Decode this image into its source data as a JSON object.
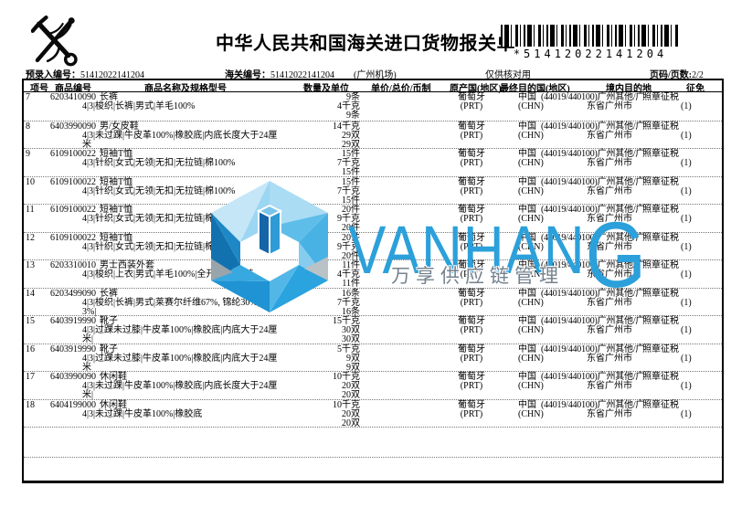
{
  "header": {
    "title": "中华人民共和国海关进口货物报关单",
    "barcode_text": "*51412022141204"
  },
  "meta": {
    "pre_entry_label": "预录入编号：",
    "pre_entry_value": "51412022141204",
    "customs_no_label": "海关编号：",
    "customs_no_value": "51412022141204",
    "port": "(广州机场)",
    "check_note": "仅供核对用",
    "page_label": "页码/页数:",
    "page_value": "2/2"
  },
  "watermark": {
    "brand_latin_head": "VANHAN",
    "brand_latin_tail": "G",
    "brand_cn": "万享供应链管理",
    "brand_color": "#2ca0da",
    "cn_color": "#74828e"
  },
  "table": {
    "headers": [
      "项号",
      "商品编号",
      "商品名称及规格型号",
      "数量及单位",
      "单价/总价/币制",
      "原产国(地区)",
      "最终目的国(地区)",
      "境内目的地",
      "征免"
    ],
    "empty_rows": 2,
    "rows": [
      {
        "no": "7",
        "code": "6203410090",
        "name": "长裤",
        "spec_lines": [
          "4|3|梭织|长裤|男式|羊毛100%"
        ],
        "qty": [
          "9条",
          "4千克",
          "9条"
        ],
        "origin": [
          "葡萄牙",
          "(PRT)"
        ],
        "dest": [
          "中国",
          "(CHN)"
        ],
        "domestic": [
          "(44019/440100)广州其他/广",
          "东省广州市"
        ],
        "levy": [
          "照章征税",
          "(1)"
        ]
      },
      {
        "no": "8",
        "code": "6403990090",
        "name": "男/女皮鞋",
        "spec_lines": [
          "4|3|未过踝|牛皮革100%|橡胶底|内底长度大于24厘",
          "米"
        ],
        "qty": [
          "14千克",
          "29双",
          "29双"
        ],
        "origin": [
          "葡萄牙",
          "(PRT)"
        ],
        "dest": [
          "中国",
          "(CHN)"
        ],
        "domestic": [
          "(44019/440100)广州其他/广",
          "东省广州市"
        ],
        "levy": [
          "照章征税",
          "(1)"
        ]
      },
      {
        "no": "9",
        "code": "6109100022",
        "name": "短袖T恤",
        "spec_lines": [
          "4|3|针织|女式|无领|无扣|无拉链|棉100%"
        ],
        "qty": [
          "15件",
          "7千克",
          "15件"
        ],
        "origin": [
          "葡萄牙",
          "(PRT)"
        ],
        "dest": [
          "中国",
          "(CHN)"
        ],
        "domestic": [
          "(44019/440100)广州其他/广",
          "东省广州市"
        ],
        "levy": [
          "照章征税",
          "(1)"
        ]
      },
      {
        "no": "10",
        "code": "6109100022",
        "name": "短袖T恤",
        "spec_lines": [
          "4|3|针织|女式|无领|无扣|无拉链|棉100%"
        ],
        "qty": [
          "15件",
          "7千克",
          "15件"
        ],
        "origin": [
          "葡萄牙",
          "(PRT)"
        ],
        "dest": [
          "中国",
          "(CHN)"
        ],
        "domestic": [
          "(44019/440100)广州其他/广",
          "东省广州市"
        ],
        "levy": [
          "照章征税",
          "(1)"
        ]
      },
      {
        "no": "11",
        "code": "6109100022",
        "name": "短袖T恤",
        "spec_lines": [
          "4|3|针织|女式|无领|无扣|无拉链|棉100%"
        ],
        "qty": [
          "20件",
          "9千克",
          "20件"
        ],
        "origin": [
          "葡萄牙",
          "(PRT)"
        ],
        "dest": [
          "中国",
          "(CHN)"
        ],
        "domestic": [
          "(44019/440100)广州其他/广",
          "东省广州市"
        ],
        "levy": [
          "照章征税",
          "(1)"
        ]
      },
      {
        "no": "12",
        "code": "6109100022",
        "name": "短袖T恤",
        "spec_lines": [
          "4|3|针织|女式|无领|无扣|无拉链|棉100%"
        ],
        "qty": [
          "20件",
          "9千克",
          "20件"
        ],
        "origin": [
          "葡萄牙",
          "(PRT)"
        ],
        "dest": [
          "中国",
          "(CHN)"
        ],
        "domestic": [
          "(44019/440100)广州其他/广",
          "东省广州市"
        ],
        "levy": [
          "照章征税",
          "(1)"
        ]
      },
      {
        "no": "13",
        "code": "6203310010",
        "name": "男士西装外套",
        "spec_lines": [
          "4|3|梭织|上衣|男式|羊毛100%|全开襟|无拉链"
        ],
        "qty": [
          "11件",
          "4千克",
          "11件"
        ],
        "origin": [
          "葡萄牙",
          "(PRT)"
        ],
        "dest": [
          "中国",
          "(CHN)"
        ],
        "domestic": [
          "(44019/440100)广州其他/广",
          "东省广州市"
        ],
        "levy": [
          "照章征税",
          "(1)"
        ]
      },
      {
        "no": "14",
        "code": "6203499090",
        "name": "长裤",
        "spec_lines": [
          "4|3|梭织|长裤|男式|莱赛尔纤维67%, 锦纶30%, 氨纶",
          "3%|"
        ],
        "qty": [
          "16条",
          "7千克",
          "16条"
        ],
        "origin": [
          "葡萄牙",
          "(PRT)"
        ],
        "dest": [
          "中国",
          "(CHN)"
        ],
        "domestic": [
          "(44019/440100)广州其他/广",
          "东省广州市"
        ],
        "levy": [
          "照章征税",
          "(1)"
        ]
      },
      {
        "no": "15",
        "code": "6403919990",
        "name": "靴子",
        "spec_lines": [
          "4|3|过踝未过膝|牛皮革100%|橡胶底|内底大于24厘",
          "米|"
        ],
        "qty": [
          "15千克",
          "30双",
          "30双"
        ],
        "origin": [
          "葡萄牙",
          "(PRT)"
        ],
        "dest": [
          "中国",
          "(CHN)"
        ],
        "domestic": [
          "(44019/440100)广州其他/广",
          "东省广州市"
        ],
        "levy": [
          "照章征税",
          "(1)"
        ]
      },
      {
        "no": "16",
        "code": "6403919990",
        "name": "靴子",
        "spec_lines": [
          "4|3|过踝未过膝|牛皮革100%|橡胶底|内底大于24厘",
          "米"
        ],
        "qty": [
          "5千克",
          "9双",
          "9双"
        ],
        "origin": [
          "葡萄牙",
          "(PRT)"
        ],
        "dest": [
          "中国",
          "(CHN)"
        ],
        "domestic": [
          "(44019/440100)广州其他/广",
          "东省广州市"
        ],
        "levy": [
          "照章征税",
          "(1)"
        ]
      },
      {
        "no": "17",
        "code": "6403990090",
        "name": "休闲鞋",
        "spec_lines": [
          "4|3|未过踝|牛皮革100%|橡胶底|内底长度大于24厘",
          "米|"
        ],
        "qty": [
          "10千克",
          "20双",
          "20双"
        ],
        "origin": [
          "葡萄牙",
          "(PRT)"
        ],
        "dest": [
          "中国",
          "(CHN)"
        ],
        "domestic": [
          "(44019/440100)广州其他/广",
          "东省广州市"
        ],
        "levy": [
          "照章征税",
          "(1)"
        ]
      },
      {
        "no": "18",
        "code": "6404199000",
        "name": "休闲鞋",
        "spec_lines": [
          "4|3|未过踝|牛皮革100%|橡胶底"
        ],
        "qty": [
          "10千克",
          "20双",
          "20双"
        ],
        "origin": [
          "葡萄牙",
          "(PRT)"
        ],
        "dest": [
          "中国",
          "(CHN)"
        ],
        "domestic": [
          "(44019/440100)广州其他/广",
          "东省广州市"
        ],
        "levy": [
          "照章征税",
          "(1)"
        ]
      }
    ]
  }
}
